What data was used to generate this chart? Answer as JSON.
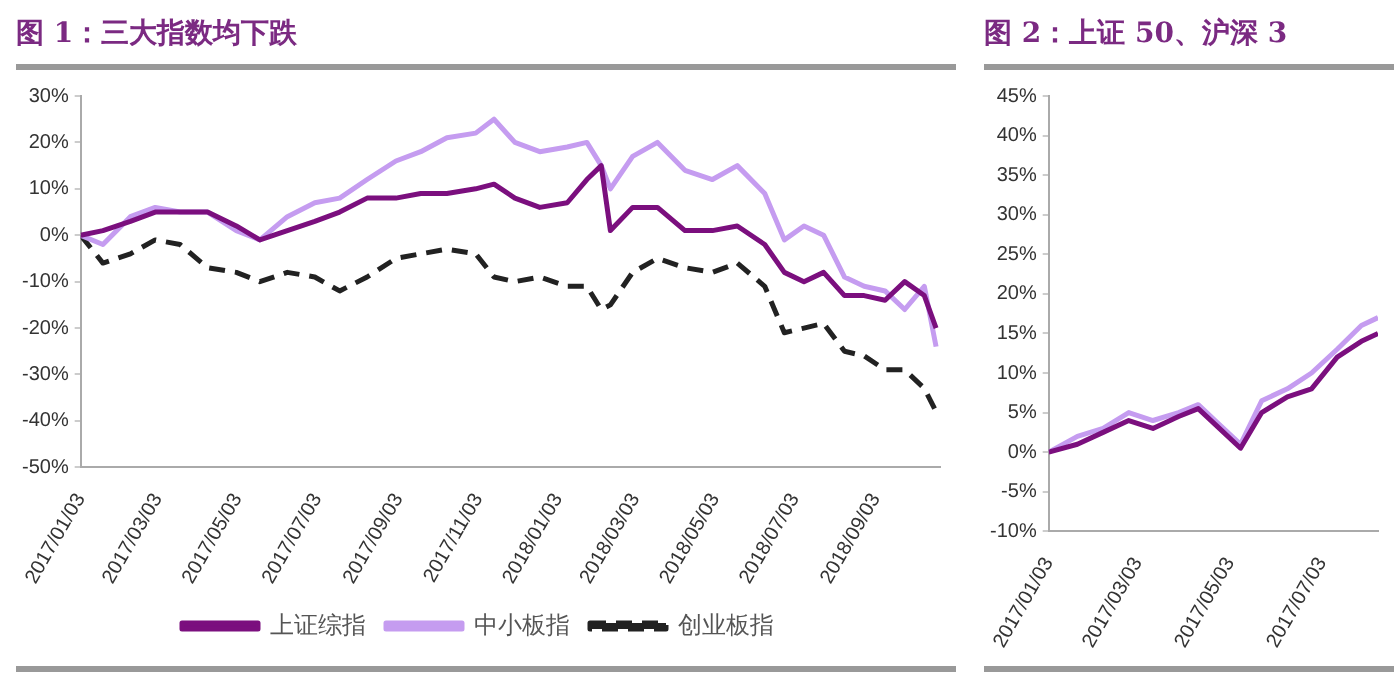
{
  "chart_data": [
    {
      "type": "line",
      "title": "图 1：三大指数均下跌",
      "x": [
        "2017-01-03",
        "2017-01-20",
        "2017-02-10",
        "2017-03-01",
        "2017-03-20",
        "2017-04-10",
        "2017-05-02",
        "2017-05-20",
        "2017-06-10",
        "2017-07-01",
        "2017-07-20",
        "2017-08-10",
        "2017-09-01",
        "2017-09-20",
        "2017-10-10",
        "2017-11-01",
        "2017-11-15",
        "2017-12-01",
        "2017-12-20",
        "2018-01-10",
        "2018-01-25",
        "2018-02-05",
        "2018-02-12",
        "2018-03-01",
        "2018-03-20",
        "2018-04-10",
        "2018-05-01",
        "2018-05-20",
        "2018-06-10",
        "2018-06-25",
        "2018-07-10",
        "2018-07-25",
        "2018-08-10",
        "2018-08-25",
        "2018-09-10",
        "2018-09-25",
        "2018-10-10",
        "2018-10-19"
      ],
      "series": [
        {
          "name": "上证综指",
          "color": "#7b0f7e",
          "line_style": "solid",
          "values": [
            0,
            1,
            3,
            5,
            5,
            5,
            2,
            -1,
            1,
            3,
            5,
            8,
            8,
            9,
            9,
            10,
            11,
            8,
            6,
            7,
            12,
            15,
            1,
            6,
            6,
            1,
            1,
            2,
            -2,
            -8,
            -10,
            -8,
            -13,
            -13,
            -14,
            -10,
            -13,
            -20
          ]
        },
        {
          "name": "中小板指",
          "color": "#c59cf0",
          "line_style": "solid",
          "values": [
            0,
            -2,
            4,
            6,
            5,
            5,
            1,
            -1,
            4,
            7,
            8,
            12,
            16,
            18,
            21,
            22,
            25,
            20,
            18,
            19,
            20,
            15,
            10,
            17,
            20,
            14,
            12,
            15,
            9,
            -1,
            2,
            0,
            -9,
            -11,
            -12,
            -16,
            -11,
            -24
          ]
        },
        {
          "name": "创业板指",
          "color": "#222222",
          "line_style": "dashed",
          "values": [
            0,
            -6,
            -4,
            -1,
            -2,
            -7,
            -8,
            -10,
            -8,
            -9,
            -12,
            -9,
            -5,
            -4,
            -3,
            -4,
            -9,
            -10,
            -9,
            -11,
            -11,
            -16,
            -15,
            -8,
            -5,
            -7,
            -8,
            -6,
            -11,
            -21,
            -20,
            -19,
            -25,
            -26,
            -29,
            -29,
            -33,
            -38
          ]
        }
      ],
      "xlim": [
        "2017-01-03",
        "2018-10-22"
      ],
      "xticks": [
        {
          "value": "2017-01-03",
          "label": "2017/01/03"
        },
        {
          "value": "2017-03-03",
          "label": "2017/03/03"
        },
        {
          "value": "2017-05-03",
          "label": "2017/05/03"
        },
        {
          "value": "2017-07-03",
          "label": "2017/07/03"
        },
        {
          "value": "2017-09-03",
          "label": "2017/09/03"
        },
        {
          "value": "2017-11-03",
          "label": "2017/11/03"
        },
        {
          "value": "2018-01-03",
          "label": "2018/01/03"
        },
        {
          "value": "2018-03-03",
          "label": "2018/03/03"
        },
        {
          "value": "2018-05-03",
          "label": "2018/05/03"
        },
        {
          "value": "2018-07-03",
          "label": "2018/07/03"
        },
        {
          "value": "2018-09-03",
          "label": "2018/09/03"
        }
      ],
      "ylim": [
        -50,
        30
      ],
      "yticks": [
        {
          "value": -50,
          "label": "-50%"
        },
        {
          "value": -40,
          "label": "-40%"
        },
        {
          "value": -30,
          "label": "-30%"
        },
        {
          "value": -20,
          "label": "-20%"
        },
        {
          "value": -10,
          "label": "-10%"
        },
        {
          "value": 0,
          "label": "0%"
        },
        {
          "value": 10,
          "label": "10%"
        },
        {
          "value": 20,
          "label": "20%"
        },
        {
          "value": 30,
          "label": "30%"
        }
      ],
      "grid": false,
      "legend": "bottom",
      "marker": "none"
    },
    {
      "type": "line",
      "title": "图 2：上证 50、沪深 3",
      "x": [
        "2017-01-03",
        "2017-01-22",
        "2017-02-08",
        "2017-02-25",
        "2017-03-13",
        "2017-03-30",
        "2017-04-12",
        "2017-04-26",
        "2017-05-10",
        "2017-05-24",
        "2017-06-10",
        "2017-06-26",
        "2017-07-13",
        "2017-07-29",
        "2017-08-09"
      ],
      "series": [
        {
          "color": "#7b0f7e",
          "line_style": "solid",
          "values": [
            0,
            1,
            2.5,
            4,
            3,
            4.5,
            5.5,
            3,
            0.5,
            5,
            7,
            8,
            12,
            14,
            15
          ]
        },
        {
          "color": "#c59cf0",
          "line_style": "solid",
          "values": [
            0,
            2,
            3,
            5,
            4,
            5,
            6,
            3.5,
            1,
            6.5,
            8,
            10,
            13,
            16,
            17
          ]
        }
      ],
      "xlim": [
        "2017-01-03",
        "2017-08-09"
      ],
      "xticks": [
        {
          "value": "2017-01-03",
          "label": "2017/01/03"
        },
        {
          "value": "2017-03-03",
          "label": "2017/03/03"
        },
        {
          "value": "2017-05-03",
          "label": "2017/05/03"
        },
        {
          "value": "2017-07-03",
          "label": "2017/07/03"
        }
      ],
      "ylim": [
        -10,
        45
      ],
      "yticks": [
        {
          "value": -10,
          "label": "-10%"
        },
        {
          "value": -5,
          "label": "-5%"
        },
        {
          "value": 0,
          "label": "0%"
        },
        {
          "value": 5,
          "label": "5%"
        },
        {
          "value": 10,
          "label": "10%"
        },
        {
          "value": 15,
          "label": "15%"
        },
        {
          "value": 20,
          "label": "20%"
        },
        {
          "value": 25,
          "label": "25%"
        },
        {
          "value": 30,
          "label": "30%"
        },
        {
          "value": 35,
          "label": "35%"
        },
        {
          "value": 40,
          "label": "40%"
        },
        {
          "value": 45,
          "label": "45%"
        }
      ],
      "grid": false,
      "legend": false,
      "marker": "none"
    }
  ]
}
